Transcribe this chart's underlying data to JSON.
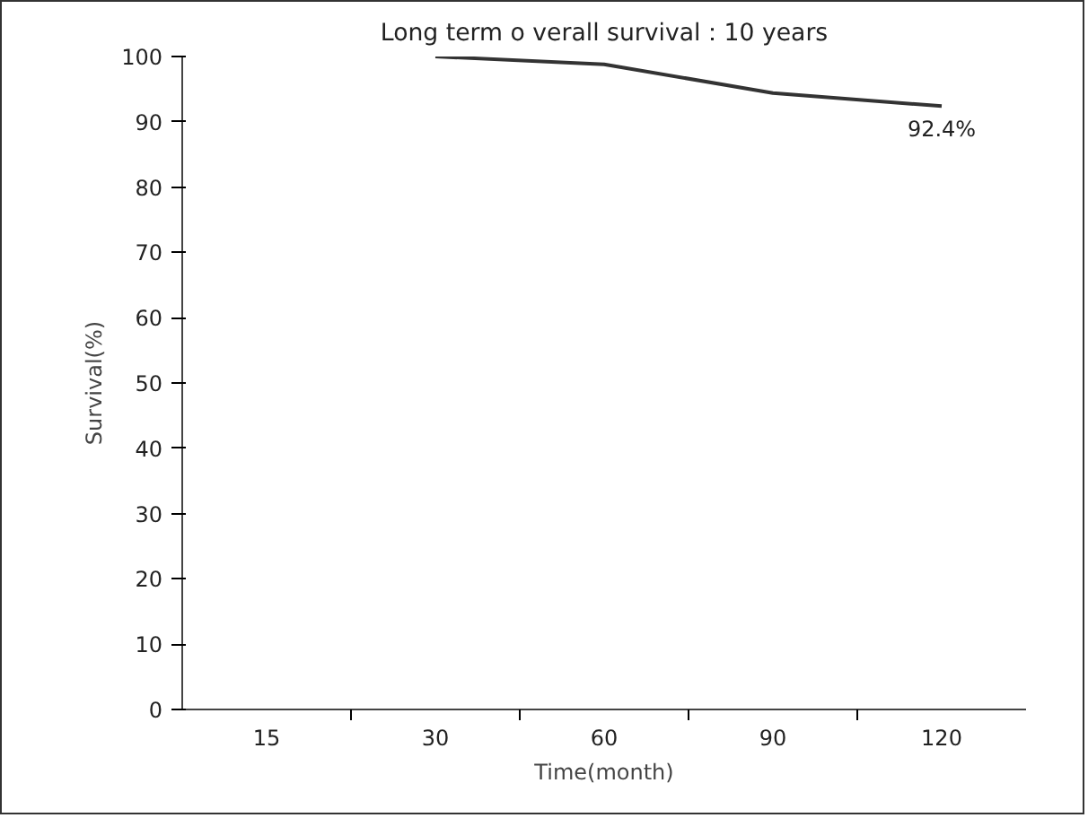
{
  "chart_data": {
    "type": "line",
    "title": "Long term o verall survival：10 years",
    "xlabel": "Time(month)",
    "ylabel": "Survival(%)",
    "categories": [
      "15",
      "30",
      "60",
      "90",
      "120"
    ],
    "series": [
      {
        "color": "#333333",
        "values": [
          null,
          100,
          98.8,
          94.4,
          92.4
        ]
      }
    ],
    "ylim": [
      0,
      100
    ],
    "yticks": [
      0,
      10,
      20,
      30,
      40,
      50,
      60,
      70,
      80,
      90,
      100
    ],
    "annotations": [
      {
        "text": "92.4%",
        "x": "120",
        "y": 92.4
      }
    ],
    "grid": false,
    "marker": "none",
    "line_style": "solid"
  }
}
